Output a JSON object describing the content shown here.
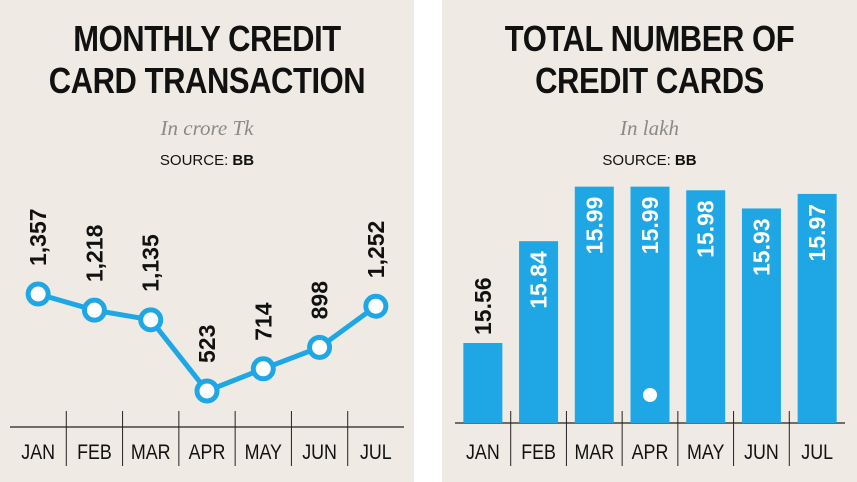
{
  "left": {
    "title_line1": "MONTHLY CREDIT",
    "title_line2": "CARD TRANSACTION",
    "unit": "In crore Tk",
    "source_label": "SOURCE:",
    "source_value": "BB"
  },
  "right": {
    "title_line1": "TOTAL NUMBER OF",
    "title_line2": "CREDIT CARDS",
    "unit": "In lakh",
    "source_label": "SOURCE:",
    "source_value": "BB"
  },
  "colors": {
    "accent": "#1ea7e4",
    "background": "#efebe4",
    "text": "#111111",
    "unit_text": "#8a8a8a"
  },
  "chart_data": [
    {
      "type": "line",
      "title": "MONTHLY CREDIT CARD TRANSACTION",
      "subtitle": "In crore Tk",
      "source": "BB",
      "categories": [
        "JAN",
        "FEB",
        "MAR",
        "APR",
        "MAY",
        "JUN",
        "JUL"
      ],
      "values": [
        1357,
        1218,
        1135,
        523,
        714,
        898,
        1252
      ],
      "value_labels": [
        "1,357",
        "1,218",
        "1,135",
        "523",
        "714",
        "898",
        "1,252"
      ],
      "ylim": [
        400,
        1500
      ],
      "grid": false,
      "color": "#1ea7e4"
    },
    {
      "type": "bar",
      "title": "TOTAL NUMBER OF CREDIT CARDS",
      "subtitle": "In lakh",
      "source": "BB",
      "categories": [
        "JAN",
        "FEB",
        "MAR",
        "APR",
        "MAY",
        "JUN",
        "JUL"
      ],
      "values": [
        15.56,
        15.84,
        15.99,
        15.99,
        15.98,
        15.93,
        15.97
      ],
      "value_labels": [
        "15.56",
        "15.84",
        "15.99",
        "15.99",
        "15.98",
        "15.93",
        "15.97"
      ],
      "ylim": [
        15.34,
        16.0
      ],
      "grid": false,
      "color": "#1ea7e4"
    }
  ]
}
